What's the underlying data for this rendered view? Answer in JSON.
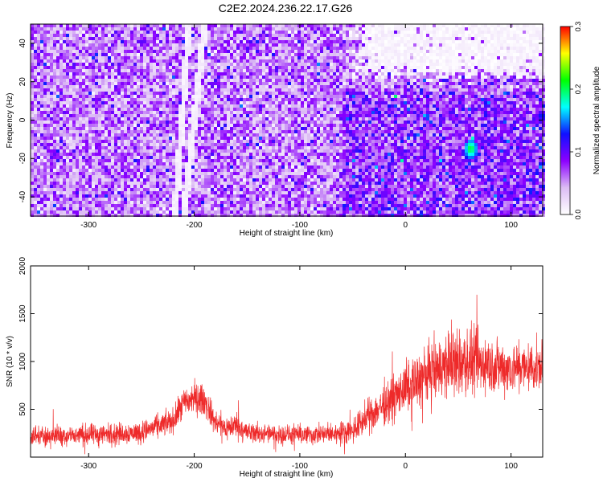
{
  "title": "C2E2.2024.236.22.17.G26",
  "chart_data": [
    {
      "type": "heatmap",
      "xlabel": "Height of straight line (km)",
      "ylabel": "Frequency (Hz)",
      "xlim": [
        -355,
        130
      ],
      "ylim": [
        -50,
        50
      ],
      "xticks": [
        -300,
        -200,
        -100,
        0,
        100
      ],
      "yticks": [
        -40,
        -20,
        0,
        20,
        40
      ],
      "grid": false,
      "colorbar": {
        "label": "Normalized spectral amplitude",
        "range": [
          0.0,
          0.3
        ],
        "ticks": [
          0.0,
          0.1,
          0.2,
          0.3
        ],
        "colors": [
          "#ffffff",
          "#dcbcf4",
          "#8c00ff",
          "#1010ff",
          "#00ffff",
          "#00ff00",
          "#ffff00",
          "#ff0000"
        ]
      },
      "features": [
        {
          "description_key": "streak_1",
          "x_at_freq_minus50": -218,
          "x_at_freq_50": -205
        },
        {
          "description_key": "streak_2",
          "x_at_freq_minus50": -210,
          "x_at_freq_50": -190
        },
        {
          "description_key": "high_freq_gap",
          "x_range": [
            -55,
            130
          ],
          "freq_range": [
            20,
            50
          ]
        },
        {
          "description_key": "peak",
          "x": 62,
          "freq": -15,
          "value": 0.22
        }
      ]
    },
    {
      "type": "line",
      "xlabel": "Height of straight line (km)",
      "ylabel": "SNR (10 * v/v)",
      "xlim": [
        -355,
        130
      ],
      "ylim": [
        0,
        2000
      ],
      "xticks": [
        -300,
        -200,
        -100,
        0,
        100
      ],
      "yticks": [
        500,
        1000,
        1500,
        2000
      ],
      "grid": false,
      "series": [
        {
          "color": "#ee2a2a",
          "x": [
            -355,
            -300,
            -250,
            -220,
            -210,
            -200,
            -190,
            -180,
            -170,
            -160,
            -150,
            -130,
            -100,
            -70,
            -50,
            -40,
            -20,
            0,
            20,
            40,
            60,
            80,
            100,
            120,
            130
          ],
          "y": [
            220,
            230,
            260,
            380,
            560,
            620,
            590,
            360,
            300,
            340,
            260,
            240,
            230,
            240,
            280,
            380,
            560,
            700,
            870,
            960,
            990,
            960,
            930,
            940,
            950
          ],
          "noise_amplitude": [
            110,
            120,
            120,
            140,
            170,
            190,
            170,
            140,
            130,
            150,
            120,
            110,
            110,
            110,
            140,
            170,
            230,
            270,
            330,
            370,
            390,
            330,
            280,
            270,
            260
          ]
        }
      ]
    }
  ]
}
